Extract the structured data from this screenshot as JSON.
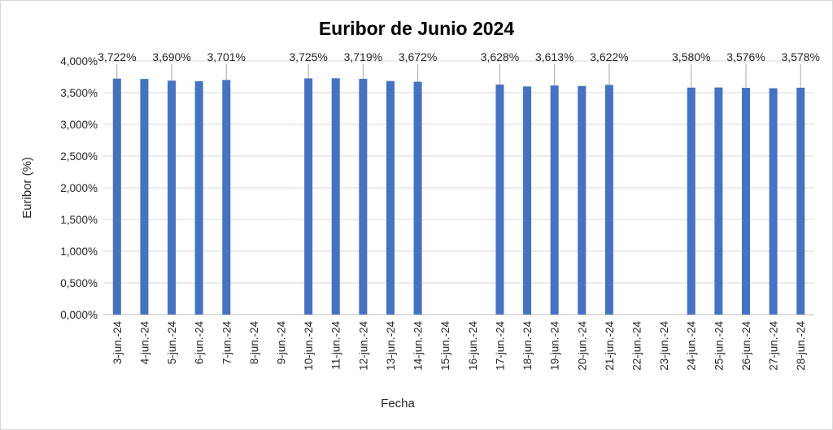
{
  "chart_data": {
    "type": "bar",
    "title": "Euribor de Junio 2024",
    "xlabel": "Fecha",
    "ylabel": "Euribor (%)",
    "ylim": [
      0,
      4
    ],
    "ytick_labels": [
      "0,000%",
      "0,500%",
      "1,000%",
      "1,500%",
      "2,000%",
      "2,500%",
      "3,000%",
      "3,500%",
      "4,000%"
    ],
    "grid": true,
    "bar_color": "#4472C4",
    "categories": [
      "3-jun.-24",
      "4-jun.-24",
      "5-jun.-24",
      "6-jun.-24",
      "7-jun.-24",
      "8-jun.-24",
      "9-jun.-24",
      "10-jun.-24",
      "11-jun.-24",
      "12-jun.-24",
      "13-jun.-24",
      "14-jun.-24",
      "15-jun.-24",
      "16-jun.-24",
      "17-jun.-24",
      "18-jun.-24",
      "19-jun.-24",
      "20-jun.-24",
      "21-jun.-24",
      "22-jun.-24",
      "23-jun.-24",
      "24-jun.-24",
      "25-jun.-24",
      "26-jun.-24",
      "27-jun.-24",
      "28-jun.-24"
    ],
    "values": [
      3.722,
      3.716,
      3.69,
      3.682,
      3.701,
      null,
      null,
      3.725,
      3.727,
      3.719,
      3.684,
      3.672,
      null,
      null,
      3.628,
      3.598,
      3.613,
      3.606,
      3.622,
      null,
      null,
      3.58,
      3.582,
      3.576,
      3.57,
      3.578
    ],
    "data_labels": [
      "3,722%",
      null,
      "3,690%",
      null,
      "3,701%",
      null,
      null,
      "3,725%",
      null,
      "3,719%",
      null,
      "3,672%",
      null,
      null,
      "3,628%",
      null,
      "3,613%",
      null,
      "3,622%",
      null,
      null,
      "3,580%",
      null,
      "3,576%",
      null,
      "3,578%"
    ]
  }
}
